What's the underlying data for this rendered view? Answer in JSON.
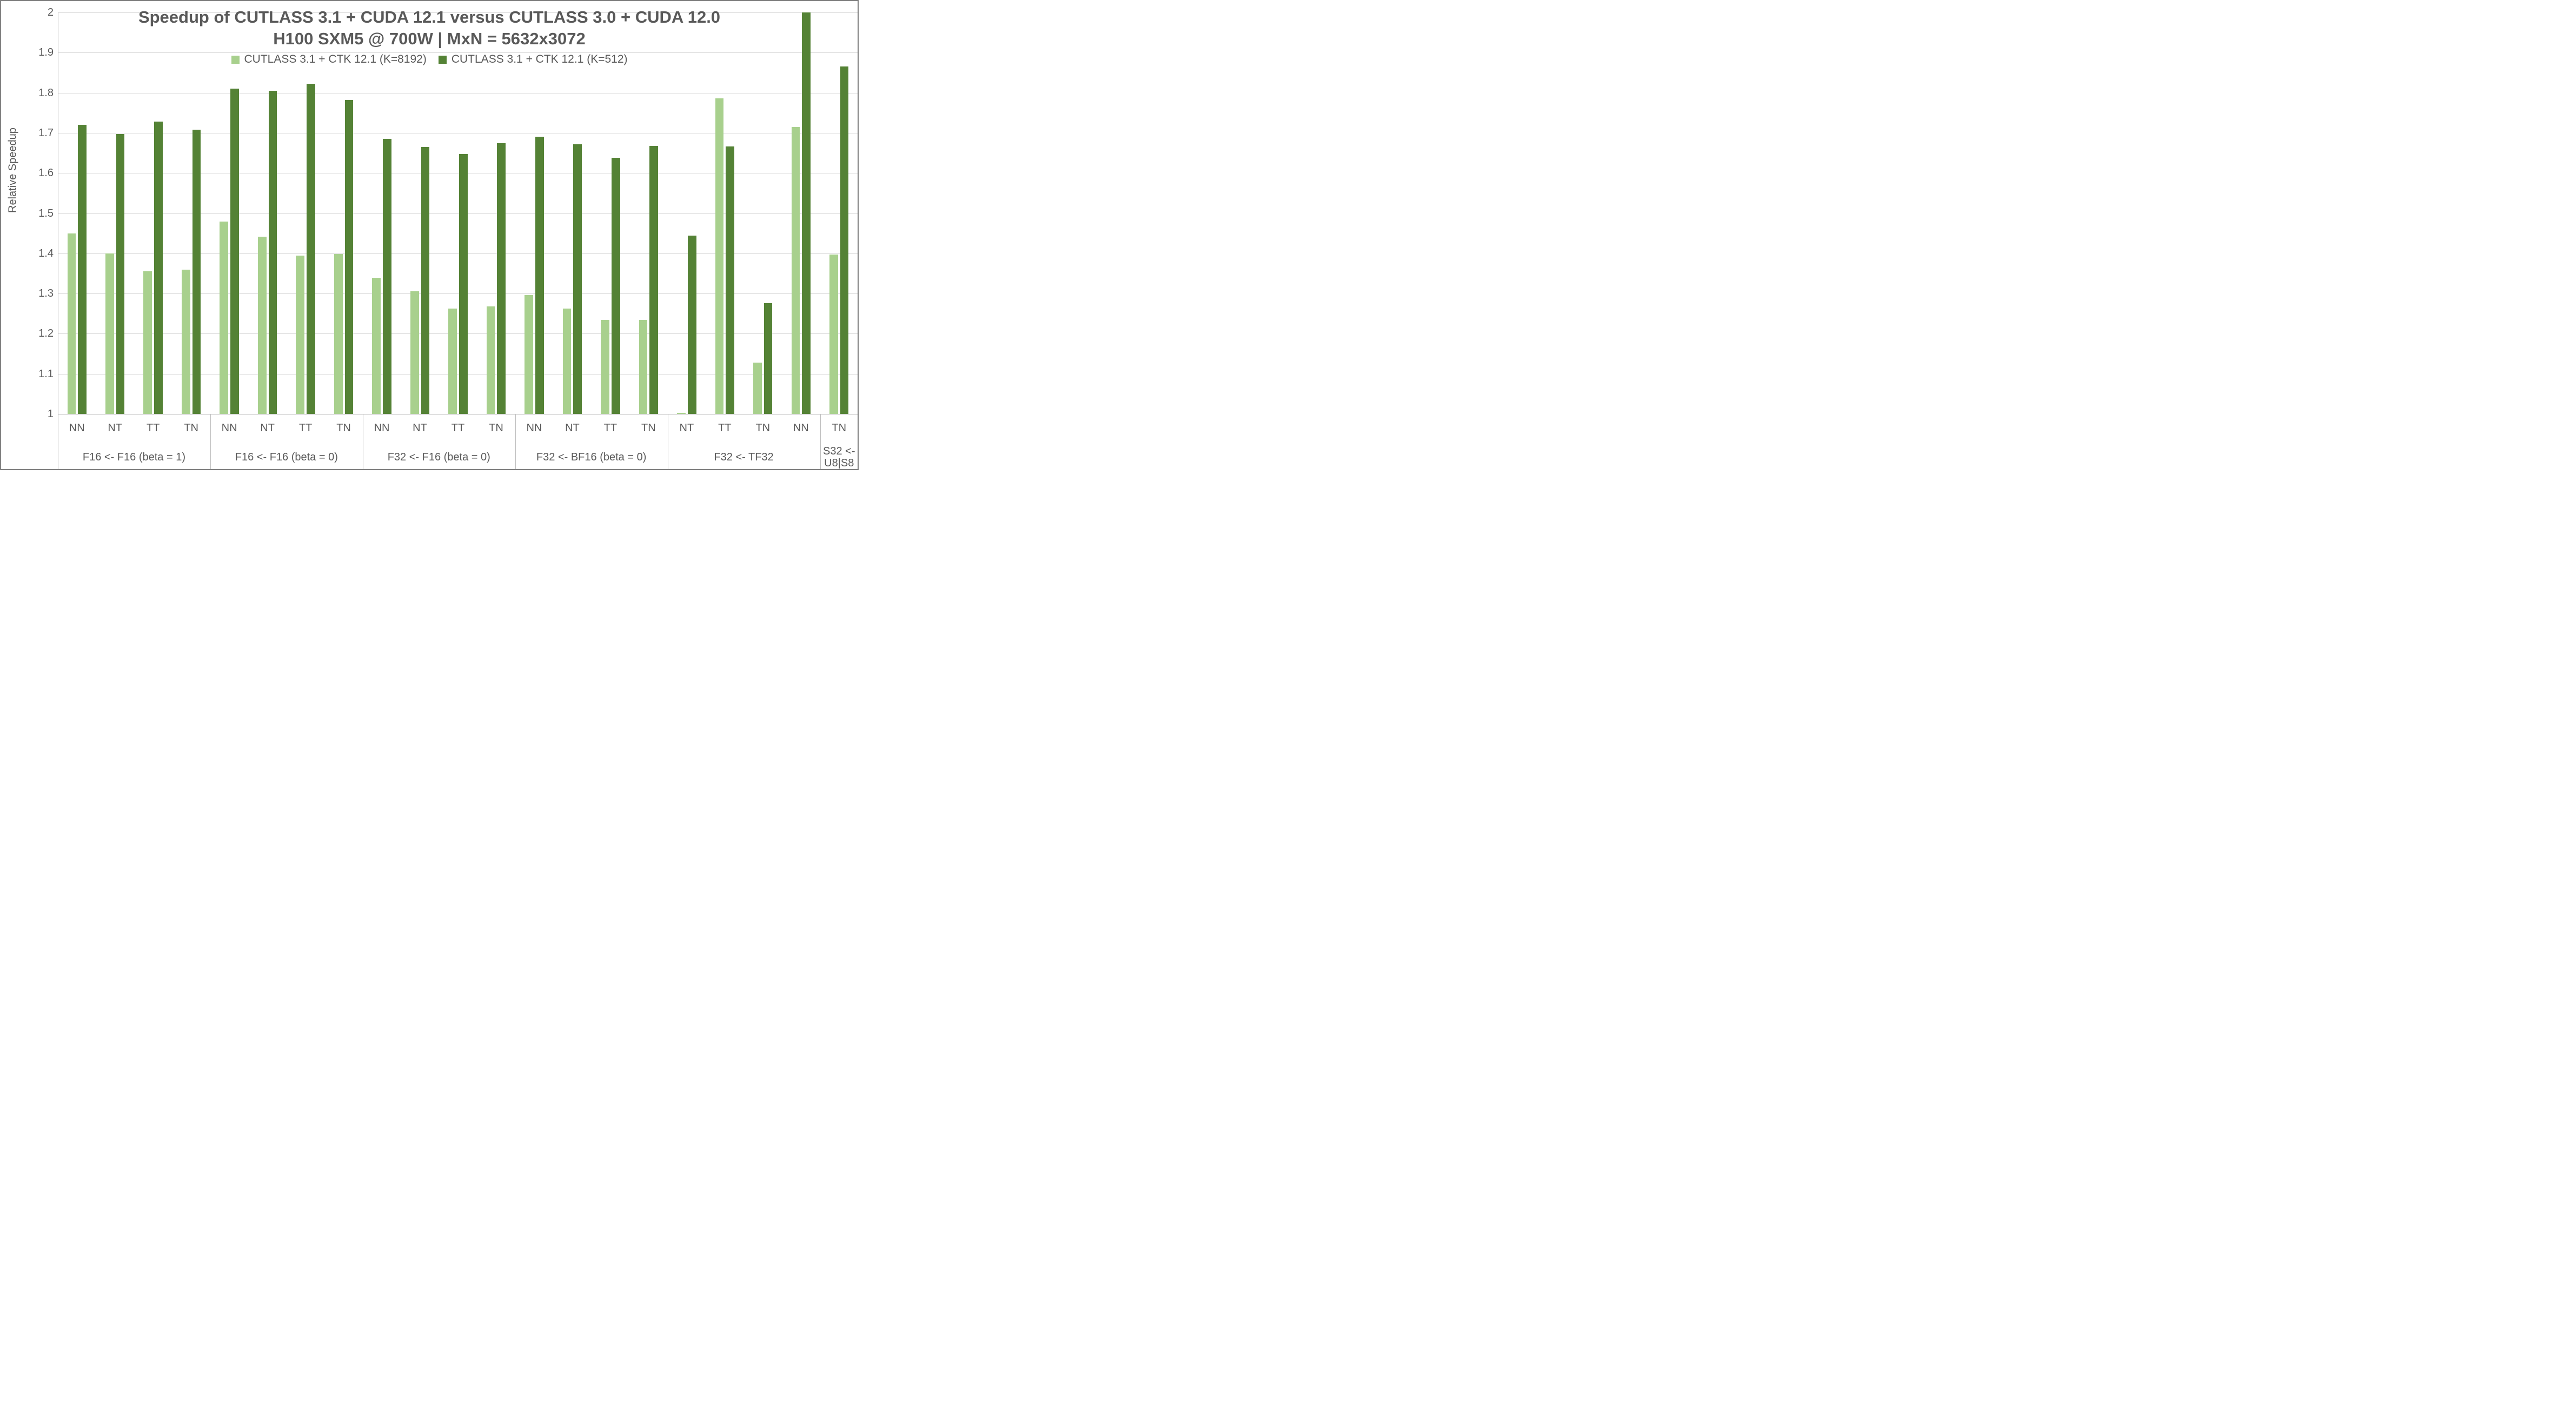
{
  "chart_data": {
    "type": "bar",
    "title": "Speedup of CUTLASS 3.1 + CUDA 12.1 versus CUTLASS 3.0 + CUDA 12.0",
    "subtitle": "H100 SXM5 @ 700W | MxN = 5632x3072",
    "ylabel": "Relative Speedup",
    "ylim": [
      1,
      2
    ],
    "ytick_step": 0.1,
    "yticks": [
      {
        "value": 2.0,
        "label": "2"
      },
      {
        "value": 1.9,
        "label": "1.9"
      },
      {
        "value": 1.8,
        "label": "1.8"
      },
      {
        "value": 1.7,
        "label": "1.7"
      },
      {
        "value": 1.6,
        "label": "1.6"
      },
      {
        "value": 1.5,
        "label": "1.5"
      },
      {
        "value": 1.4,
        "label": "1.4"
      },
      {
        "value": 1.3,
        "label": "1.3"
      },
      {
        "value": 1.2,
        "label": "1.2"
      },
      {
        "value": 1.1,
        "label": "1.1"
      },
      {
        "value": 1.0,
        "label": "1"
      }
    ],
    "grid": true,
    "legend_position": "top-center",
    "text_color": "#595959",
    "gridline_color": "#d9d9d9",
    "axis_color": "#bfbfbf",
    "groups": [
      {
        "label": "F16 <- F16 (beta = 1)",
        "categories": [
          "NN",
          "NT",
          "TT",
          "TN"
        ]
      },
      {
        "label": "F16 <- F16 (beta = 0)",
        "categories": [
          "NN",
          "NT",
          "TT",
          "TN"
        ]
      },
      {
        "label": "F32 <- F16 (beta = 0)",
        "categories": [
          "NN",
          "NT",
          "TT",
          "TN"
        ]
      },
      {
        "label": "F32 <- BF16 (beta = 0)",
        "categories": [
          "NN",
          "NT",
          "TT",
          "TN"
        ]
      },
      {
        "label": "F32 <- TF32",
        "categories": [
          "NT",
          "TT",
          "TN",
          "NN"
        ]
      },
      {
        "label": "S32 <- U8|S8",
        "categories": [
          "TN"
        ]
      }
    ],
    "series": [
      {
        "name": "CUTLASS 3.1 + CTK 12.1 (K=8192)",
        "color": "#a8d08d",
        "values": [
          1.45,
          1.4,
          1.355,
          1.36,
          1.479,
          1.441,
          1.394,
          1.399,
          1.339,
          1.306,
          1.262,
          1.268,
          1.296,
          1.263,
          1.234,
          1.234,
          1.003,
          1.786,
          1.128,
          1.715,
          1.397
        ]
      },
      {
        "name": "CUTLASS 3.1 + CTK 12.1 (K=512)",
        "color": "#548235",
        "values": [
          1.72,
          1.697,
          1.728,
          1.708,
          1.81,
          1.805,
          1.823,
          1.782,
          1.685,
          1.665,
          1.648,
          1.674,
          1.69,
          1.671,
          1.638,
          1.668,
          1.444,
          1.666,
          1.276,
          2.0,
          1.866
        ]
      }
    ]
  }
}
